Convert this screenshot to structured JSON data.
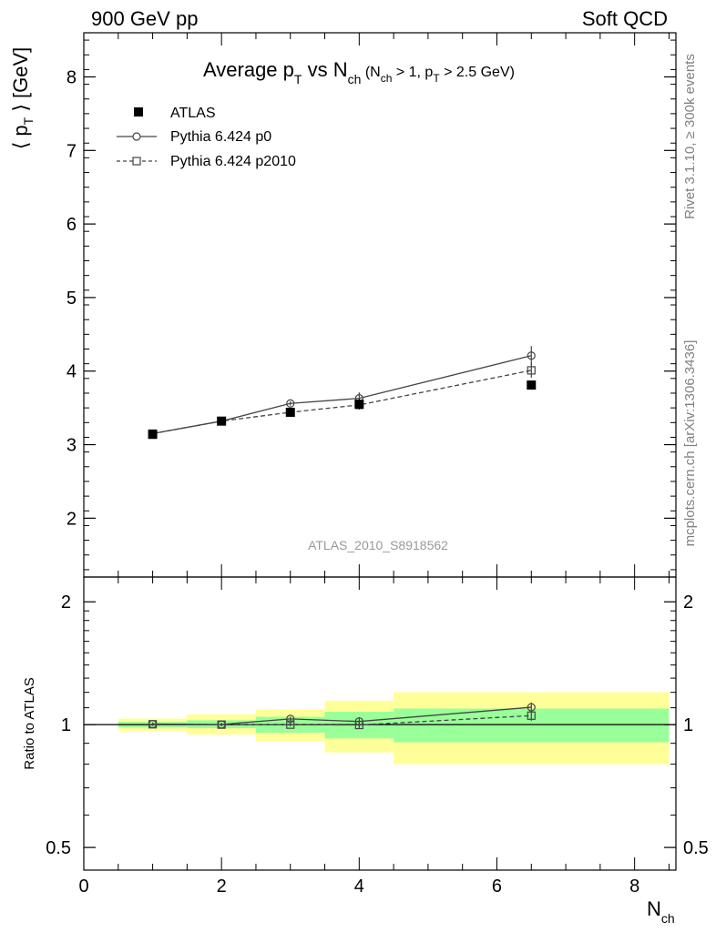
{
  "header": {
    "left": "900 GeV pp",
    "right": "Soft QCD"
  },
  "side_text": {
    "rivet_pre": "Rivet 3.1.10,",
    "rivet_ge": "≥",
    "rivet_post": "300k events",
    "mcplots": "mcplots.cern.ch [arXiv:1306.3436]"
  },
  "colors": {
    "band_inner": "#99ff99",
    "band_outer": "#ffff99",
    "data": "#000000",
    "mc": "#444444",
    "side_text": "#808080"
  },
  "chart_data": [
    {
      "type": "line",
      "title": {
        "part1": "Average p",
        "part1_sub": "T",
        "part2": " vs N",
        "part2_sub": "ch",
        "cond1": " (N",
        "cond1_sub": "ch",
        "cond2": " > 1, p",
        "cond2_sub": "T",
        "cond3": " > 2.5 GeV)"
      },
      "ylabel": {
        "pre": "⟨ p",
        "sub": "T",
        "post": " ⟩  [GeV]"
      },
      "xlim": [
        0,
        8.6
      ],
      "ylim": [
        1.2,
        8.6
      ],
      "yticks": [
        2,
        3,
        4,
        5,
        6,
        7,
        8
      ],
      "watermark": "ATLAS_2010_S8918562",
      "legend_position": "top-left",
      "series": [
        {
          "name": "ATLAS",
          "style": "data",
          "x": [
            1,
            2,
            3,
            4,
            6.5
          ],
          "y": [
            3.14,
            3.32,
            3.44,
            3.55,
            3.81
          ],
          "yerr": [
            0.03,
            0.03,
            0.04,
            0.07,
            0.06
          ]
        },
        {
          "name": "Pythia 6.424 p0",
          "style": "solid-circle",
          "x": [
            1,
            2,
            3,
            4,
            6.5
          ],
          "y": [
            3.15,
            3.32,
            3.56,
            3.63,
            4.21
          ],
          "yerr": [
            0.02,
            0.03,
            0.03,
            0.08,
            0.13
          ]
        },
        {
          "name": "Pythia 6.424 p2010",
          "style": "dashed-square",
          "x": [
            1,
            2,
            3,
            4,
            6.5
          ],
          "y": [
            3.15,
            3.32,
            3.44,
            3.54,
            4.01
          ],
          "yerr": [
            0.02,
            0.02,
            0.03,
            0.06,
            0.1
          ]
        }
      ]
    },
    {
      "type": "line",
      "ylabel": "Ratio to ATLAS",
      "xlabel": {
        "main": "N",
        "sub": "ch"
      },
      "xlim": [
        0,
        8.6
      ],
      "ylim": [
        0.44,
        2.3
      ],
      "yscale": "log",
      "xticks": [
        0,
        2,
        4,
        6,
        8
      ],
      "yticks": [
        0.5,
        1,
        2
      ],
      "bands": [
        {
          "x_lo": 0.5,
          "x_hi": 1.5,
          "inner": [
            0.985,
            1.015
          ],
          "outer": [
            0.965,
            1.035
          ]
        },
        {
          "x_lo": 1.5,
          "x_hi": 2.5,
          "inner": [
            0.98,
            1.025
          ],
          "outer": [
            0.945,
            1.06
          ]
        },
        {
          "x_lo": 2.5,
          "x_hi": 3.5,
          "inner": [
            0.955,
            1.045
          ],
          "outer": [
            0.91,
            1.09
          ]
        },
        {
          "x_lo": 3.5,
          "x_hi": 4.5,
          "inner": [
            0.925,
            1.075
          ],
          "outer": [
            0.855,
            1.145
          ]
        },
        {
          "x_lo": 4.5,
          "x_hi": 8.5,
          "inner": [
            0.905,
            1.095
          ],
          "outer": [
            0.8,
            1.2
          ]
        }
      ],
      "series": [
        {
          "name": "Pythia 6.424 p0",
          "style": "solid-circle",
          "x": [
            1,
            2,
            3,
            4,
            6.5
          ],
          "y": [
            1.003,
            1.001,
            1.033,
            1.018,
            1.103
          ],
          "yerr": [
            0.01,
            0.01,
            0.012,
            0.025,
            0.03
          ]
        },
        {
          "name": "Pythia 6.424 p2010",
          "style": "dashed-square",
          "x": [
            1,
            2,
            3,
            4,
            6.5
          ],
          "y": [
            1.002,
            1.0,
            1.0,
            0.998,
            1.052
          ],
          "yerr": [
            0.01,
            0.01,
            0.01,
            0.02,
            0.03
          ]
        }
      ]
    }
  ]
}
